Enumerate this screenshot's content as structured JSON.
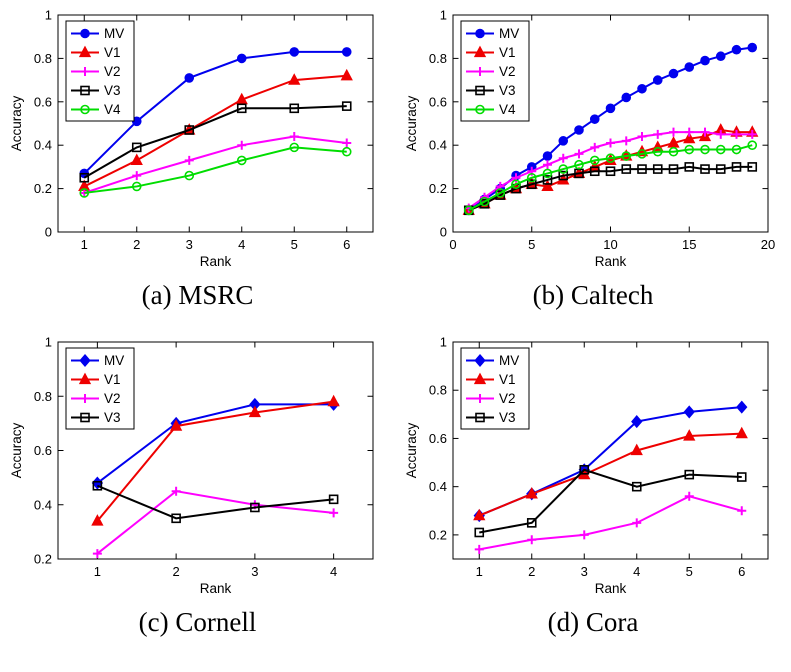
{
  "page": {
    "background": "#ffffff"
  },
  "colors": {
    "mv": "#0000ee",
    "v1": "#ee0000",
    "v2": "#ff00ff",
    "v3": "#000000",
    "v4": "#00dd00",
    "axis": "#000000"
  },
  "chart_data": [
    {
      "id": "msrc",
      "type": "line",
      "caption": "(a) MSRC",
      "xlabel": "Rank",
      "ylabel": "Accuracy",
      "xlim": [
        0.5,
        6.5
      ],
      "ylim": [
        0,
        1
      ],
      "xticks": [
        1,
        2,
        3,
        4,
        5,
        6
      ],
      "yticks": [
        0,
        0.2,
        0.4,
        0.6,
        0.8,
        1
      ],
      "x": [
        1,
        2,
        3,
        4,
        5,
        6
      ],
      "grid": false,
      "legend_position": "top-left",
      "series": [
        {
          "name": "MV",
          "color": "#0000ee",
          "marker": "circle",
          "filled": true,
          "values": [
            0.27,
            0.51,
            0.71,
            0.8,
            0.83,
            0.83
          ]
        },
        {
          "name": "V1",
          "color": "#ee0000",
          "marker": "triangle",
          "filled": true,
          "values": [
            0.21,
            0.33,
            0.47,
            0.61,
            0.7,
            0.72
          ]
        },
        {
          "name": "V2",
          "color": "#ff00ff",
          "marker": "plus",
          "filled": false,
          "values": [
            0.18,
            0.26,
            0.33,
            0.4,
            0.44,
            0.41
          ]
        },
        {
          "name": "V3",
          "color": "#000000",
          "marker": "square",
          "filled": false,
          "values": [
            0.25,
            0.39,
            0.47,
            0.57,
            0.57,
            0.58
          ]
        },
        {
          "name": "V4",
          "color": "#00dd00",
          "marker": "circle",
          "filled": false,
          "values": [
            0.18,
            0.21,
            0.26,
            0.33,
            0.39,
            0.37
          ]
        }
      ]
    },
    {
      "id": "caltech",
      "type": "line",
      "caption": "(b) Caltech",
      "xlabel": "Rank",
      "ylabel": "Accuracy",
      "xlim": [
        0,
        20
      ],
      "ylim": [
        0,
        1
      ],
      "xticks": [
        0,
        5,
        10,
        15,
        20
      ],
      "yticks": [
        0,
        0.2,
        0.4,
        0.6,
        0.8,
        1
      ],
      "x": [
        1,
        2,
        3,
        4,
        5,
        6,
        7,
        8,
        9,
        10,
        11,
        12,
        13,
        14,
        15,
        16,
        17,
        18,
        19
      ],
      "grid": false,
      "legend_position": "top-left",
      "series": [
        {
          "name": "MV",
          "color": "#0000ee",
          "marker": "circle",
          "filled": true,
          "values": [
            0.1,
            0.15,
            0.2,
            0.26,
            0.3,
            0.35,
            0.42,
            0.47,
            0.52,
            0.57,
            0.62,
            0.66,
            0.7,
            0.73,
            0.76,
            0.79,
            0.81,
            0.84,
            0.85
          ]
        },
        {
          "name": "V1",
          "color": "#ee0000",
          "marker": "triangle",
          "filled": true,
          "values": [
            0.1,
            0.13,
            0.17,
            0.2,
            0.22,
            0.21,
            0.24,
            0.27,
            0.3,
            0.33,
            0.35,
            0.37,
            0.39,
            0.41,
            0.43,
            0.44,
            0.47,
            0.46,
            0.46
          ]
        },
        {
          "name": "V2",
          "color": "#ff00ff",
          "marker": "plus",
          "filled": false,
          "values": [
            0.11,
            0.16,
            0.21,
            0.25,
            0.28,
            0.31,
            0.34,
            0.36,
            0.39,
            0.41,
            0.42,
            0.44,
            0.45,
            0.46,
            0.46,
            0.46,
            0.45,
            0.45,
            0.45
          ]
        },
        {
          "name": "V3",
          "color": "#000000",
          "marker": "square",
          "filled": false,
          "values": [
            0.1,
            0.13,
            0.17,
            0.2,
            0.22,
            0.24,
            0.26,
            0.27,
            0.28,
            0.28,
            0.29,
            0.29,
            0.29,
            0.29,
            0.3,
            0.29,
            0.29,
            0.3,
            0.3
          ]
        },
        {
          "name": "V4",
          "color": "#00dd00",
          "marker": "circle",
          "filled": false,
          "values": [
            0.1,
            0.14,
            0.18,
            0.22,
            0.25,
            0.27,
            0.29,
            0.31,
            0.33,
            0.34,
            0.35,
            0.36,
            0.37,
            0.37,
            0.38,
            0.38,
            0.38,
            0.38,
            0.4
          ]
        }
      ]
    },
    {
      "id": "cornell",
      "type": "line",
      "caption": "(c) Cornell",
      "xlabel": "Rank",
      "ylabel": "Accuracy",
      "xlim": [
        0.5,
        4.5
      ],
      "ylim": [
        0.2,
        1
      ],
      "xticks": [
        1,
        2,
        3,
        4
      ],
      "yticks": [
        0.2,
        0.4,
        0.6,
        0.8,
        1
      ],
      "x": [
        1,
        2,
        3,
        4
      ],
      "grid": false,
      "legend_position": "top-left",
      "series": [
        {
          "name": "MV",
          "color": "#0000ee",
          "marker": "diamond",
          "filled": true,
          "values": [
            0.48,
            0.7,
            0.77,
            0.77
          ]
        },
        {
          "name": "V1",
          "color": "#ee0000",
          "marker": "triangle",
          "filled": true,
          "values": [
            0.34,
            0.69,
            0.74,
            0.78
          ]
        },
        {
          "name": "V2",
          "color": "#ff00ff",
          "marker": "plus",
          "filled": false,
          "values": [
            0.22,
            0.45,
            0.4,
            0.37
          ]
        },
        {
          "name": "V3",
          "color": "#000000",
          "marker": "square",
          "filled": false,
          "values": [
            0.47,
            0.35,
            0.39,
            0.42
          ]
        }
      ]
    },
    {
      "id": "cora",
      "type": "line",
      "caption": "(d) Cora",
      "xlabel": "Rank",
      "ylabel": "Accuracy",
      "xlim": [
        0.5,
        6.5
      ],
      "ylim": [
        0.1,
        1
      ],
      "xticks": [
        1,
        2,
        3,
        4,
        5,
        6
      ],
      "yticks": [
        0.2,
        0.4,
        0.6,
        0.8,
        1
      ],
      "x": [
        1,
        2,
        3,
        4,
        5,
        6
      ],
      "grid": false,
      "legend_position": "top-left",
      "series": [
        {
          "name": "MV",
          "color": "#0000ee",
          "marker": "diamond",
          "filled": true,
          "values": [
            0.28,
            0.37,
            0.47,
            0.67,
            0.71,
            0.73
          ]
        },
        {
          "name": "V1",
          "color": "#ee0000",
          "marker": "triangle",
          "filled": true,
          "values": [
            0.28,
            0.37,
            0.45,
            0.55,
            0.61,
            0.62
          ]
        },
        {
          "name": "V2",
          "color": "#ff00ff",
          "marker": "plus",
          "filled": false,
          "values": [
            0.14,
            0.18,
            0.2,
            0.25,
            0.36,
            0.3
          ]
        },
        {
          "name": "V3",
          "color": "#000000",
          "marker": "square",
          "filled": false,
          "values": [
            0.21,
            0.25,
            0.47,
            0.4,
            0.45,
            0.44
          ]
        }
      ]
    }
  ]
}
